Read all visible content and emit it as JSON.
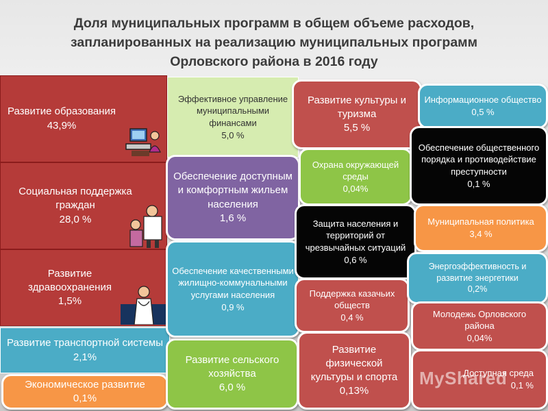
{
  "title": {
    "line1": "Доля муниципальных программ в общем объеме расходов,",
    "line2": "запланированных на реализацию муниципальных программ",
    "line3": "Орловского района в 2016 году"
  },
  "programs": [
    {
      "label": "Развитие образования",
      "value": "43,9%"
    },
    {
      "label": "Социальная поддержка граждан",
      "value": "28,0 %"
    },
    {
      "label": "Развитие здравоохранения",
      "value": "1,5%"
    },
    {
      "label": "Развитие транспортной системы",
      "value": "2,1%"
    },
    {
      "label": "Экономическое развитие",
      "value": "0,1%"
    },
    {
      "label": "Эффективное управление муниципальными финансами",
      "value": "5,0 %"
    },
    {
      "label": "Обеспечение доступным и комфортным жильем населения",
      "value": "1,6 %"
    },
    {
      "label": "Обеспечение качественными жилищно-коммунальными услугами населения",
      "value": "0,9 %"
    },
    {
      "label": "Развитие сельского хозяйства",
      "value": "6,0 %"
    },
    {
      "label": "Развитие культуры и туризма",
      "value": "5,5 %"
    },
    {
      "label": "Охрана окружающей среды",
      "value": "0,04%"
    },
    {
      "label": "Защита населения и территорий от чрезвычайных ситуаций",
      "value": "0,6 %"
    },
    {
      "label": "Поддержка казачьих обществ",
      "value": "0,4 %"
    },
    {
      "label": "Развитие физической культуры и спорта",
      "value": "0,13%"
    },
    {
      "label": "Информационное общество",
      "value": "0,5 %"
    },
    {
      "label": "Обеспечение общественного порядка и противодействие преступности",
      "value": "0,1 %"
    },
    {
      "label": "Муниципальная политика",
      "value": "3,4 %"
    },
    {
      "label": "Энергоэффективность и развитие энергетики",
      "value": "0,2%"
    },
    {
      "label": "Молодежь Орловского района",
      "value": "0,04%"
    },
    {
      "label": "Доступная среда",
      "value": "0,1 %"
    }
  ],
  "watermark": "MyShared",
  "colors": {
    "red": "#c0504d",
    "black": "#050505",
    "green": "#8ec547",
    "light_green": "#d6ecb0",
    "purple": "#8064a2",
    "teal": "#4bacc6",
    "orange": "#f79646"
  }
}
